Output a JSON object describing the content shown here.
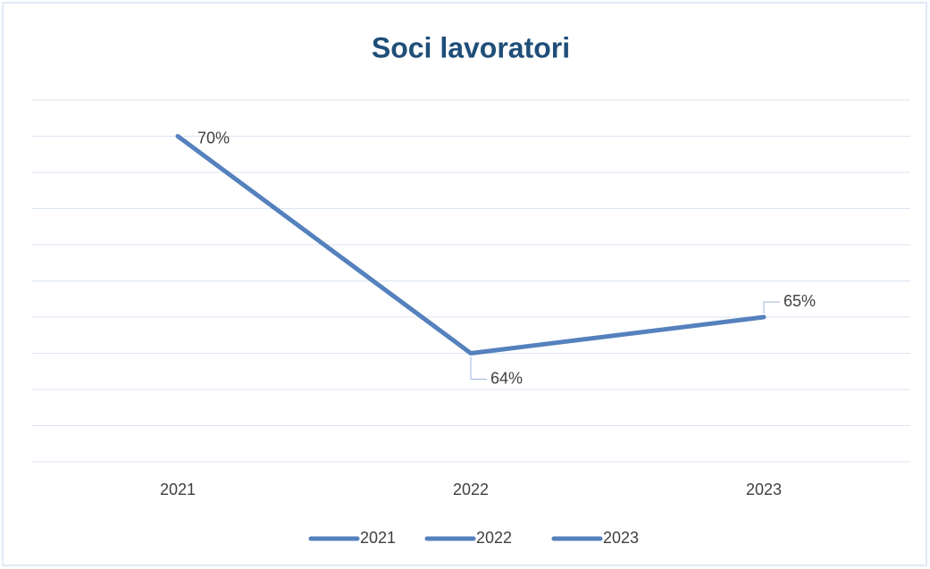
{
  "chart_data": {
    "type": "line",
    "title": "Soci lavoratori",
    "categories": [
      "2021",
      "2022",
      "2023"
    ],
    "values": [
      70,
      64,
      65
    ],
    "value_labels": [
      "70%",
      "64%",
      "65%"
    ],
    "color": "#5581bd",
    "legend_entries": [
      "2021",
      "2022",
      "2023"
    ],
    "ylim": [
      61,
      71
    ],
    "yticks": [
      61,
      62,
      63,
      64,
      65,
      66,
      67,
      68,
      69,
      70,
      71
    ],
    "grid": true
  }
}
